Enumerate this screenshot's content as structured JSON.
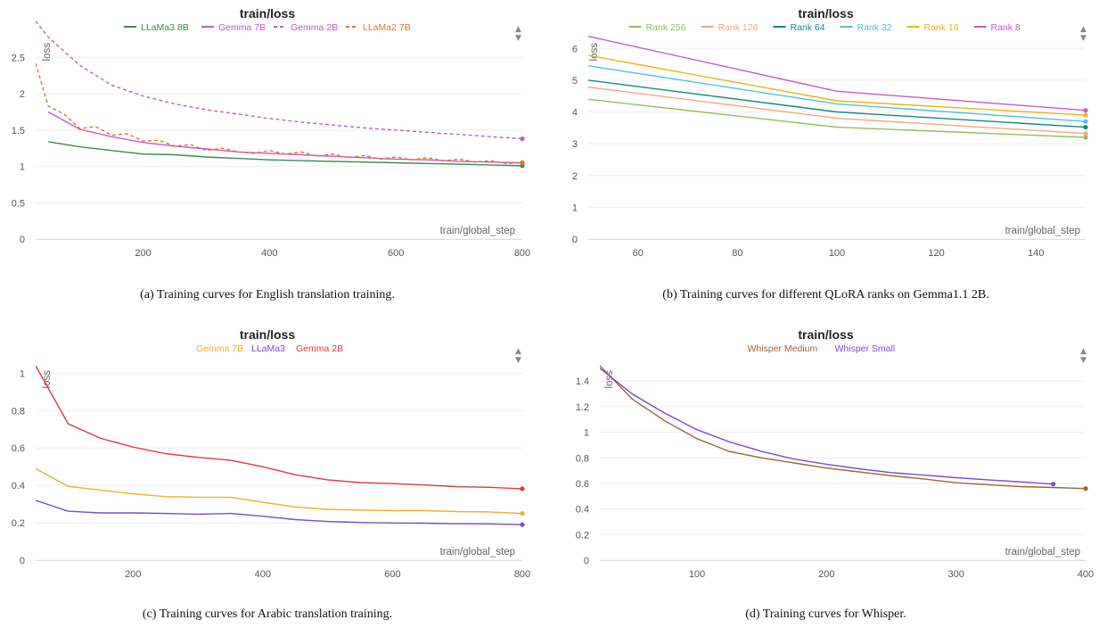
{
  "chart_data": [
    {
      "type": "line",
      "title": "train/loss",
      "xlabel": "train/global_step",
      "ylabel": "loss",
      "xlim": [
        30,
        800
      ],
      "ylim": [
        0,
        2.8
      ],
      "xticks": [
        200,
        400,
        600,
        800
      ],
      "xtick_labels": [
        "200",
        "400",
        "600",
        "800"
      ],
      "yticks": [
        0,
        0.5,
        1,
        1.5,
        2,
        2.5
      ],
      "ytick_labels": [
        "0",
        "0.5",
        "1",
        "1.5",
        "2",
        "2.5"
      ],
      "grid": true,
      "legend_position": "top",
      "series": [
        {
          "name": "LLaMa3 8B",
          "color": "#3a8a50",
          "dash": false,
          "x": [
            50,
            100,
            150,
            200,
            250,
            300,
            350,
            400,
            450,
            500,
            550,
            600,
            650,
            700,
            750,
            800
          ],
          "y": [
            1.34,
            1.27,
            1.22,
            1.17,
            1.16,
            1.13,
            1.11,
            1.09,
            1.08,
            1.07,
            1.06,
            1.05,
            1.04,
            1.03,
            1.02,
            1.01
          ]
        },
        {
          "name": "Gemma 7B",
          "color": "#c05cc8",
          "dash": false,
          "x": [
            50,
            100,
            150,
            200,
            250,
            300,
            350,
            400,
            450,
            500,
            550,
            600,
            650,
            700,
            750,
            800
          ],
          "y": [
            1.75,
            1.51,
            1.41,
            1.33,
            1.28,
            1.24,
            1.2,
            1.18,
            1.16,
            1.14,
            1.12,
            1.1,
            1.09,
            1.07,
            1.06,
            1.05
          ]
        },
        {
          "name": "Gemma 2B",
          "color": "#c05cc8",
          "dash": true,
          "x": [
            30,
            50,
            100,
            150,
            200,
            250,
            300,
            350,
            400,
            450,
            500,
            550,
            600,
            650,
            700,
            750,
            800
          ],
          "y": [
            3.0,
            2.78,
            2.39,
            2.12,
            1.97,
            1.86,
            1.78,
            1.72,
            1.66,
            1.61,
            1.57,
            1.53,
            1.5,
            1.47,
            1.44,
            1.41,
            1.38
          ]
        },
        {
          "name": "LLaMa2 7B",
          "color": "#e0742b",
          "dash": true,
          "x": [
            30,
            50,
            75,
            100,
            125,
            150,
            175,
            200,
            225,
            250,
            275,
            300,
            325,
            350,
            375,
            400,
            425,
            450,
            475,
            500,
            525,
            550,
            575,
            600,
            625,
            650,
            675,
            700,
            725,
            750,
            775,
            800
          ],
          "y": [
            2.42,
            1.83,
            1.72,
            1.52,
            1.55,
            1.43,
            1.45,
            1.35,
            1.36,
            1.28,
            1.3,
            1.22,
            1.25,
            1.2,
            1.18,
            1.22,
            1.17,
            1.2,
            1.14,
            1.17,
            1.12,
            1.15,
            1.1,
            1.13,
            1.09,
            1.12,
            1.08,
            1.1,
            1.06,
            1.08,
            1.04,
            1.05
          ]
        }
      ],
      "caption": "(a) Training curves for English translation training."
    },
    {
      "type": "line",
      "title": "train/loss",
      "xlabel": "train/global_step",
      "ylabel": "loss",
      "xlim": [
        50,
        150
      ],
      "ylim": [
        0,
        6.4
      ],
      "xticks": [
        60,
        80,
        100,
        120,
        140
      ],
      "xtick_labels": [
        "60",
        "80",
        "100",
        "120",
        "140"
      ],
      "yticks": [
        0,
        1,
        2,
        3,
        4,
        5,
        6
      ],
      "ytick_labels": [
        "0",
        "1",
        "2",
        "3",
        "4",
        "5",
        "6"
      ],
      "grid": true,
      "legend_position": "top",
      "series": [
        {
          "name": "Rank 256",
          "color": "#8dbf5a",
          "dash": false,
          "x": [
            50,
            100,
            150
          ],
          "y": [
            4.4,
            3.52,
            3.2
          ]
        },
        {
          "name": "Rank 128",
          "color": "#f0a87c",
          "dash": false,
          "x": [
            50,
            100,
            150
          ],
          "y": [
            4.78,
            3.8,
            3.32
          ]
        },
        {
          "name": "Rank 64",
          "color": "#138a78",
          "dash": false,
          "x": [
            50,
            100,
            150
          ],
          "y": [
            5.0,
            4.0,
            3.52
          ]
        },
        {
          "name": "Rank 32",
          "color": "#4fc1d6",
          "dash": false,
          "x": [
            50,
            100,
            150
          ],
          "y": [
            5.45,
            4.25,
            3.7
          ]
        },
        {
          "name": "Rank 16",
          "color": "#e9b317",
          "dash": false,
          "x": [
            50,
            100,
            150
          ],
          "y": [
            5.78,
            4.35,
            3.9
          ]
        },
        {
          "name": "Rank 8",
          "color": "#c35ac8",
          "dash": false,
          "x": [
            50,
            100,
            150
          ],
          "y": [
            6.38,
            4.65,
            4.05
          ]
        }
      ],
      "caption": "(b) Training curves for different QLoRA ranks on Gemma1.1 2B."
    },
    {
      "type": "line",
      "title": "train/loss",
      "xlabel": "train/global_step",
      "ylabel": "loss",
      "xlim": [
        50,
        800
      ],
      "ylim": [
        0,
        1.04
      ],
      "xticks": [
        200,
        400,
        600,
        800
      ],
      "xtick_labels": [
        "200",
        "400",
        "600",
        "800"
      ],
      "yticks": [
        0,
        0.2,
        0.4,
        0.6,
        0.8,
        1
      ],
      "ytick_labels": [
        "0",
        "0.2",
        "0.4",
        "0.6",
        "0.8",
        "1"
      ],
      "grid": true,
      "legend_position": "top",
      "series": [
        {
          "name": "Gemma 7B",
          "color": "#e9b12a",
          "dash": false,
          "x": [
            50,
            100,
            150,
            200,
            250,
            300,
            350,
            400,
            450,
            500,
            550,
            600,
            650,
            700,
            750,
            800
          ],
          "y": [
            0.49,
            0.395,
            0.375,
            0.355,
            0.34,
            0.337,
            0.337,
            0.31,
            0.285,
            0.272,
            0.268,
            0.265,
            0.265,
            0.26,
            0.258,
            0.25
          ]
        },
        {
          "name": "LLaMa3",
          "color": "#7451c0",
          "dash": false,
          "x": [
            50,
            100,
            150,
            200,
            250,
            300,
            350,
            400,
            450,
            500,
            550,
            600,
            650,
            700,
            750,
            800
          ],
          "y": [
            0.32,
            0.262,
            0.253,
            0.253,
            0.25,
            0.246,
            0.25,
            0.235,
            0.217,
            0.207,
            0.202,
            0.199,
            0.198,
            0.195,
            0.194,
            0.19
          ]
        },
        {
          "name": "Gemma 2B",
          "color": "#d93e3e",
          "dash": false,
          "x": [
            50,
            100,
            150,
            200,
            250,
            300,
            350,
            400,
            450,
            500,
            550,
            600,
            650,
            700,
            750,
            800
          ],
          "y": [
            1.04,
            0.73,
            0.652,
            0.605,
            0.57,
            0.55,
            0.535,
            0.5,
            0.457,
            0.43,
            0.415,
            0.41,
            0.402,
            0.393,
            0.39,
            0.382
          ]
        }
      ],
      "caption": "(c) Training curves for Arabic translation training."
    },
    {
      "type": "line",
      "title": "train/loss",
      "xlabel": "train/global_step",
      "ylabel": "loss",
      "xlim": [
        25,
        400
      ],
      "ylim": [
        0,
        1.52
      ],
      "xticks": [
        100,
        200,
        300,
        400
      ],
      "xtick_labels": [
        "100",
        "200",
        "300",
        "400"
      ],
      "yticks": [
        0,
        0.2,
        0.4,
        0.6,
        0.8,
        1,
        1.2,
        1.4
      ],
      "ytick_labels": [
        "0",
        "0.2",
        "0.4",
        "0.6",
        "0.8",
        "1",
        "1.2",
        "1.4"
      ],
      "grid": true,
      "legend_position": "top",
      "series": [
        {
          "name": "Whisper Medium",
          "color": "#a0623e",
          "dash": false,
          "x": [
            25,
            50,
            75,
            100,
            125,
            150,
            175,
            200,
            225,
            250,
            275,
            300,
            325,
            350,
            375,
            400
          ],
          "y": [
            1.52,
            1.26,
            1.09,
            0.95,
            0.85,
            0.8,
            0.76,
            0.72,
            0.69,
            0.66,
            0.635,
            0.605,
            0.59,
            0.575,
            0.568,
            0.56
          ]
        },
        {
          "name": "Whisper Small",
          "color": "#7b4fc4",
          "dash": false,
          "x": [
            25,
            50,
            75,
            100,
            125,
            150,
            175,
            200,
            225,
            250,
            275,
            300,
            325,
            350,
            375
          ],
          "y": [
            1.5,
            1.3,
            1.15,
            1.02,
            0.925,
            0.85,
            0.79,
            0.75,
            0.715,
            0.685,
            0.665,
            0.645,
            0.628,
            0.612,
            0.595
          ]
        }
      ],
      "caption": "(d) Training curves for Whisper."
    }
  ]
}
